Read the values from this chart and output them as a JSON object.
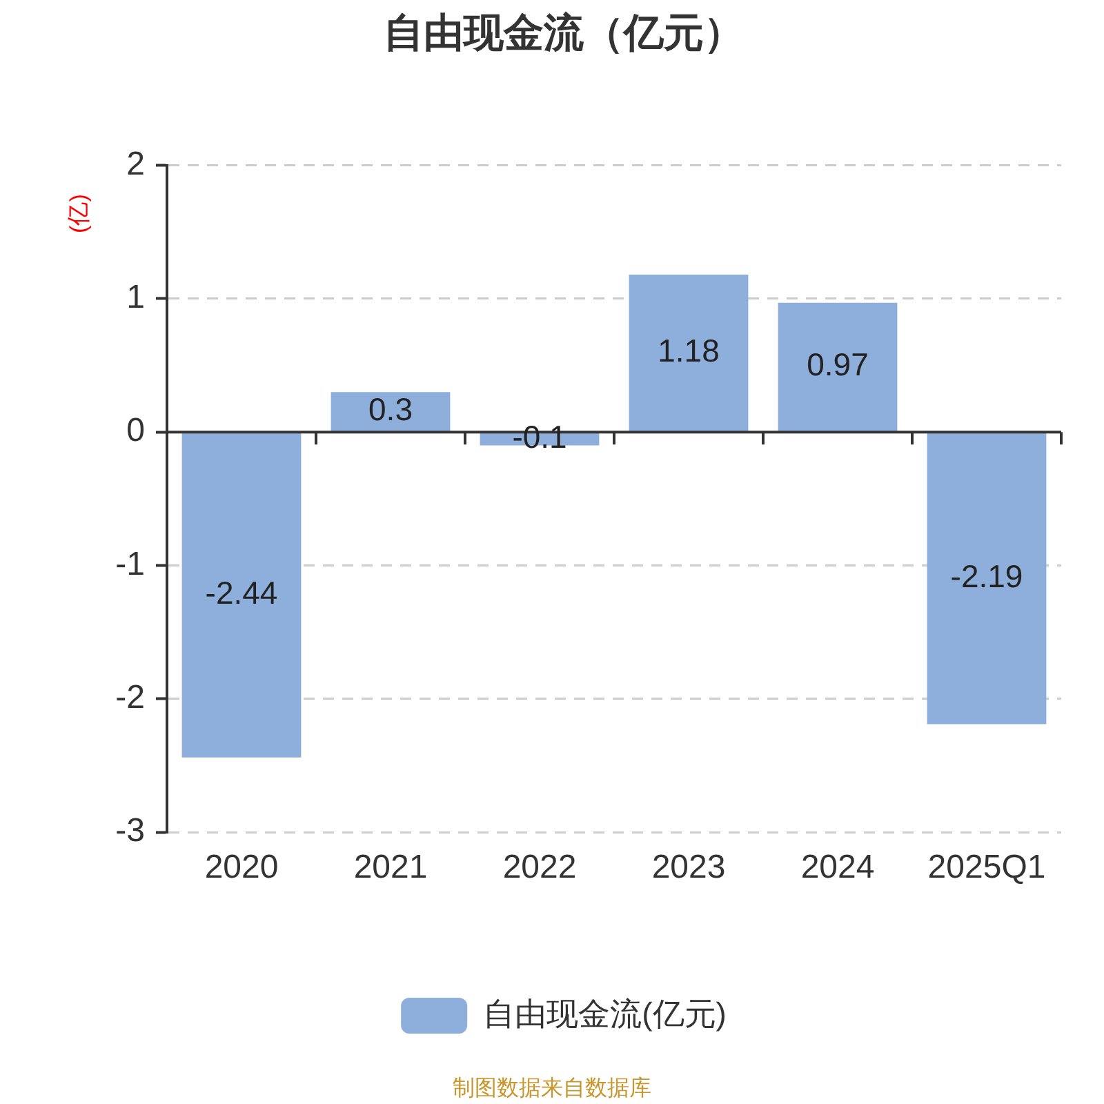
{
  "chart_data": {
    "type": "bar",
    "title": "自由现金流（亿元）",
    "ylabel": "(亿)",
    "categories": [
      "2020",
      "2021",
      "2022",
      "2023",
      "2024",
      "2025Q1"
    ],
    "series": [
      {
        "name": "自由现金流(亿元)",
        "color": "#8eaedb",
        "values": [
          -2.44,
          0.3,
          -0.1,
          1.18,
          0.97,
          -2.19
        ]
      }
    ],
    "ylim": [
      -3,
      2
    ],
    "yticks": [
      -3,
      -2,
      -1,
      0,
      1,
      2
    ],
    "grid": "y",
    "data_labels": true,
    "legend": "bottom",
    "annotations": [
      "制图数据来自数据库"
    ]
  }
}
